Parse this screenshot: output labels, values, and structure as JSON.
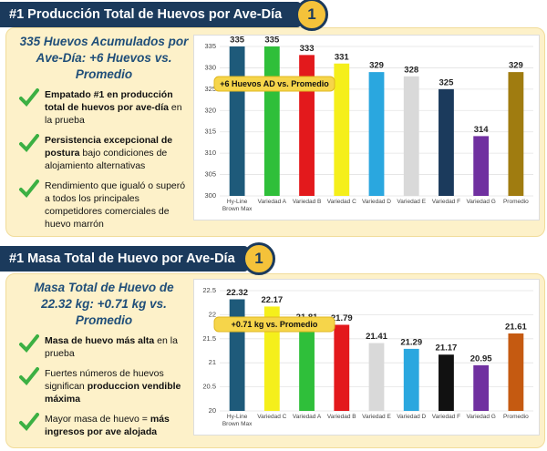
{
  "panels": [
    {
      "title": "#1 Producción Total de Huevos por Ave-Día",
      "badge": "1",
      "headline": "335 Huevos Acumulados por Ave-Día: +6 Huevos vs. Promedio",
      "bullets": [
        [
          {
            "text": "Empatado #1 en producción total de huevos por ave-día",
            "bold": true
          },
          {
            "text": " en la prueba",
            "bold": false
          }
        ],
        [
          {
            "text": "Persistencia excepcional de postura",
            "bold": true
          },
          {
            "text": " bajo condiciones de alojamiento alternativas",
            "bold": false
          }
        ],
        [
          {
            "text": "Rendimiento que igualó o superó a todos los principales competidores comerciales de huevo marrón",
            "bold": false
          }
        ]
      ]
    },
    {
      "title": "#1 Masa Total de Huevo por Ave-Día",
      "badge": "1",
      "headline": "Masa Total de Huevo de 22.32 kg: +0.71 kg vs. Promedio",
      "bullets": [
        [
          {
            "text": "Masa de huevo más alta",
            "bold": true
          },
          {
            "text": " en la prueba",
            "bold": false
          }
        ],
        [
          {
            "text": "Fuertes números de huevos significan ",
            "bold": false
          },
          {
            "text": "produccion vendible máxima",
            "bold": true
          }
        ],
        [
          {
            "text": "Mayor masa de huevo = ",
            "bold": false
          },
          {
            "text": "más ingresos por ave alojada",
            "bold": true
          }
        ]
      ]
    }
  ],
  "chart_data": [
    {
      "type": "bar",
      "annotation": "+6 Huevos AD vs. Promedio",
      "categories": [
        "Hy-Line Brown Max",
        "Variedad A",
        "Variedad B",
        "Variedad C",
        "Variedad D",
        "Variedad E",
        "Variedad F",
        "Variedad G",
        "Promedio"
      ],
      "values": [
        335,
        335,
        333,
        331,
        329,
        328,
        325,
        314,
        329
      ],
      "colors": [
        "#1e5a7a",
        "#2fbf3a",
        "#e3191c",
        "#f5ef1b",
        "#2aa7df",
        "#d9d9d9",
        "#1b3a5c",
        "#7030a0",
        "#a07c10"
      ],
      "ylim": [
        300,
        335
      ],
      "yticks": [
        300,
        305,
        310,
        315,
        320,
        325,
        330,
        335
      ],
      "grid": true
    },
    {
      "type": "bar",
      "annotation": "+0.71 kg vs. Promedio",
      "categories": [
        "Hy-Line Brown Max",
        "Variedad C",
        "Variedad A",
        "Variedad B",
        "Variedad E",
        "Variedad D",
        "Variedad F",
        "Variedad G",
        "Promedio"
      ],
      "values": [
        22.32,
        22.17,
        21.81,
        21.79,
        21.41,
        21.29,
        21.17,
        20.95,
        21.61
      ],
      "colors": [
        "#1e5a7a",
        "#f5ef1b",
        "#2fbf3a",
        "#e3191c",
        "#d9d9d9",
        "#2aa7df",
        "#111111",
        "#7030a0",
        "#c55a11"
      ],
      "ylim": [
        20,
        22.5
      ],
      "yticks": [
        20,
        20.5,
        21,
        21.5,
        22,
        22.5
      ],
      "grid": true
    }
  ]
}
